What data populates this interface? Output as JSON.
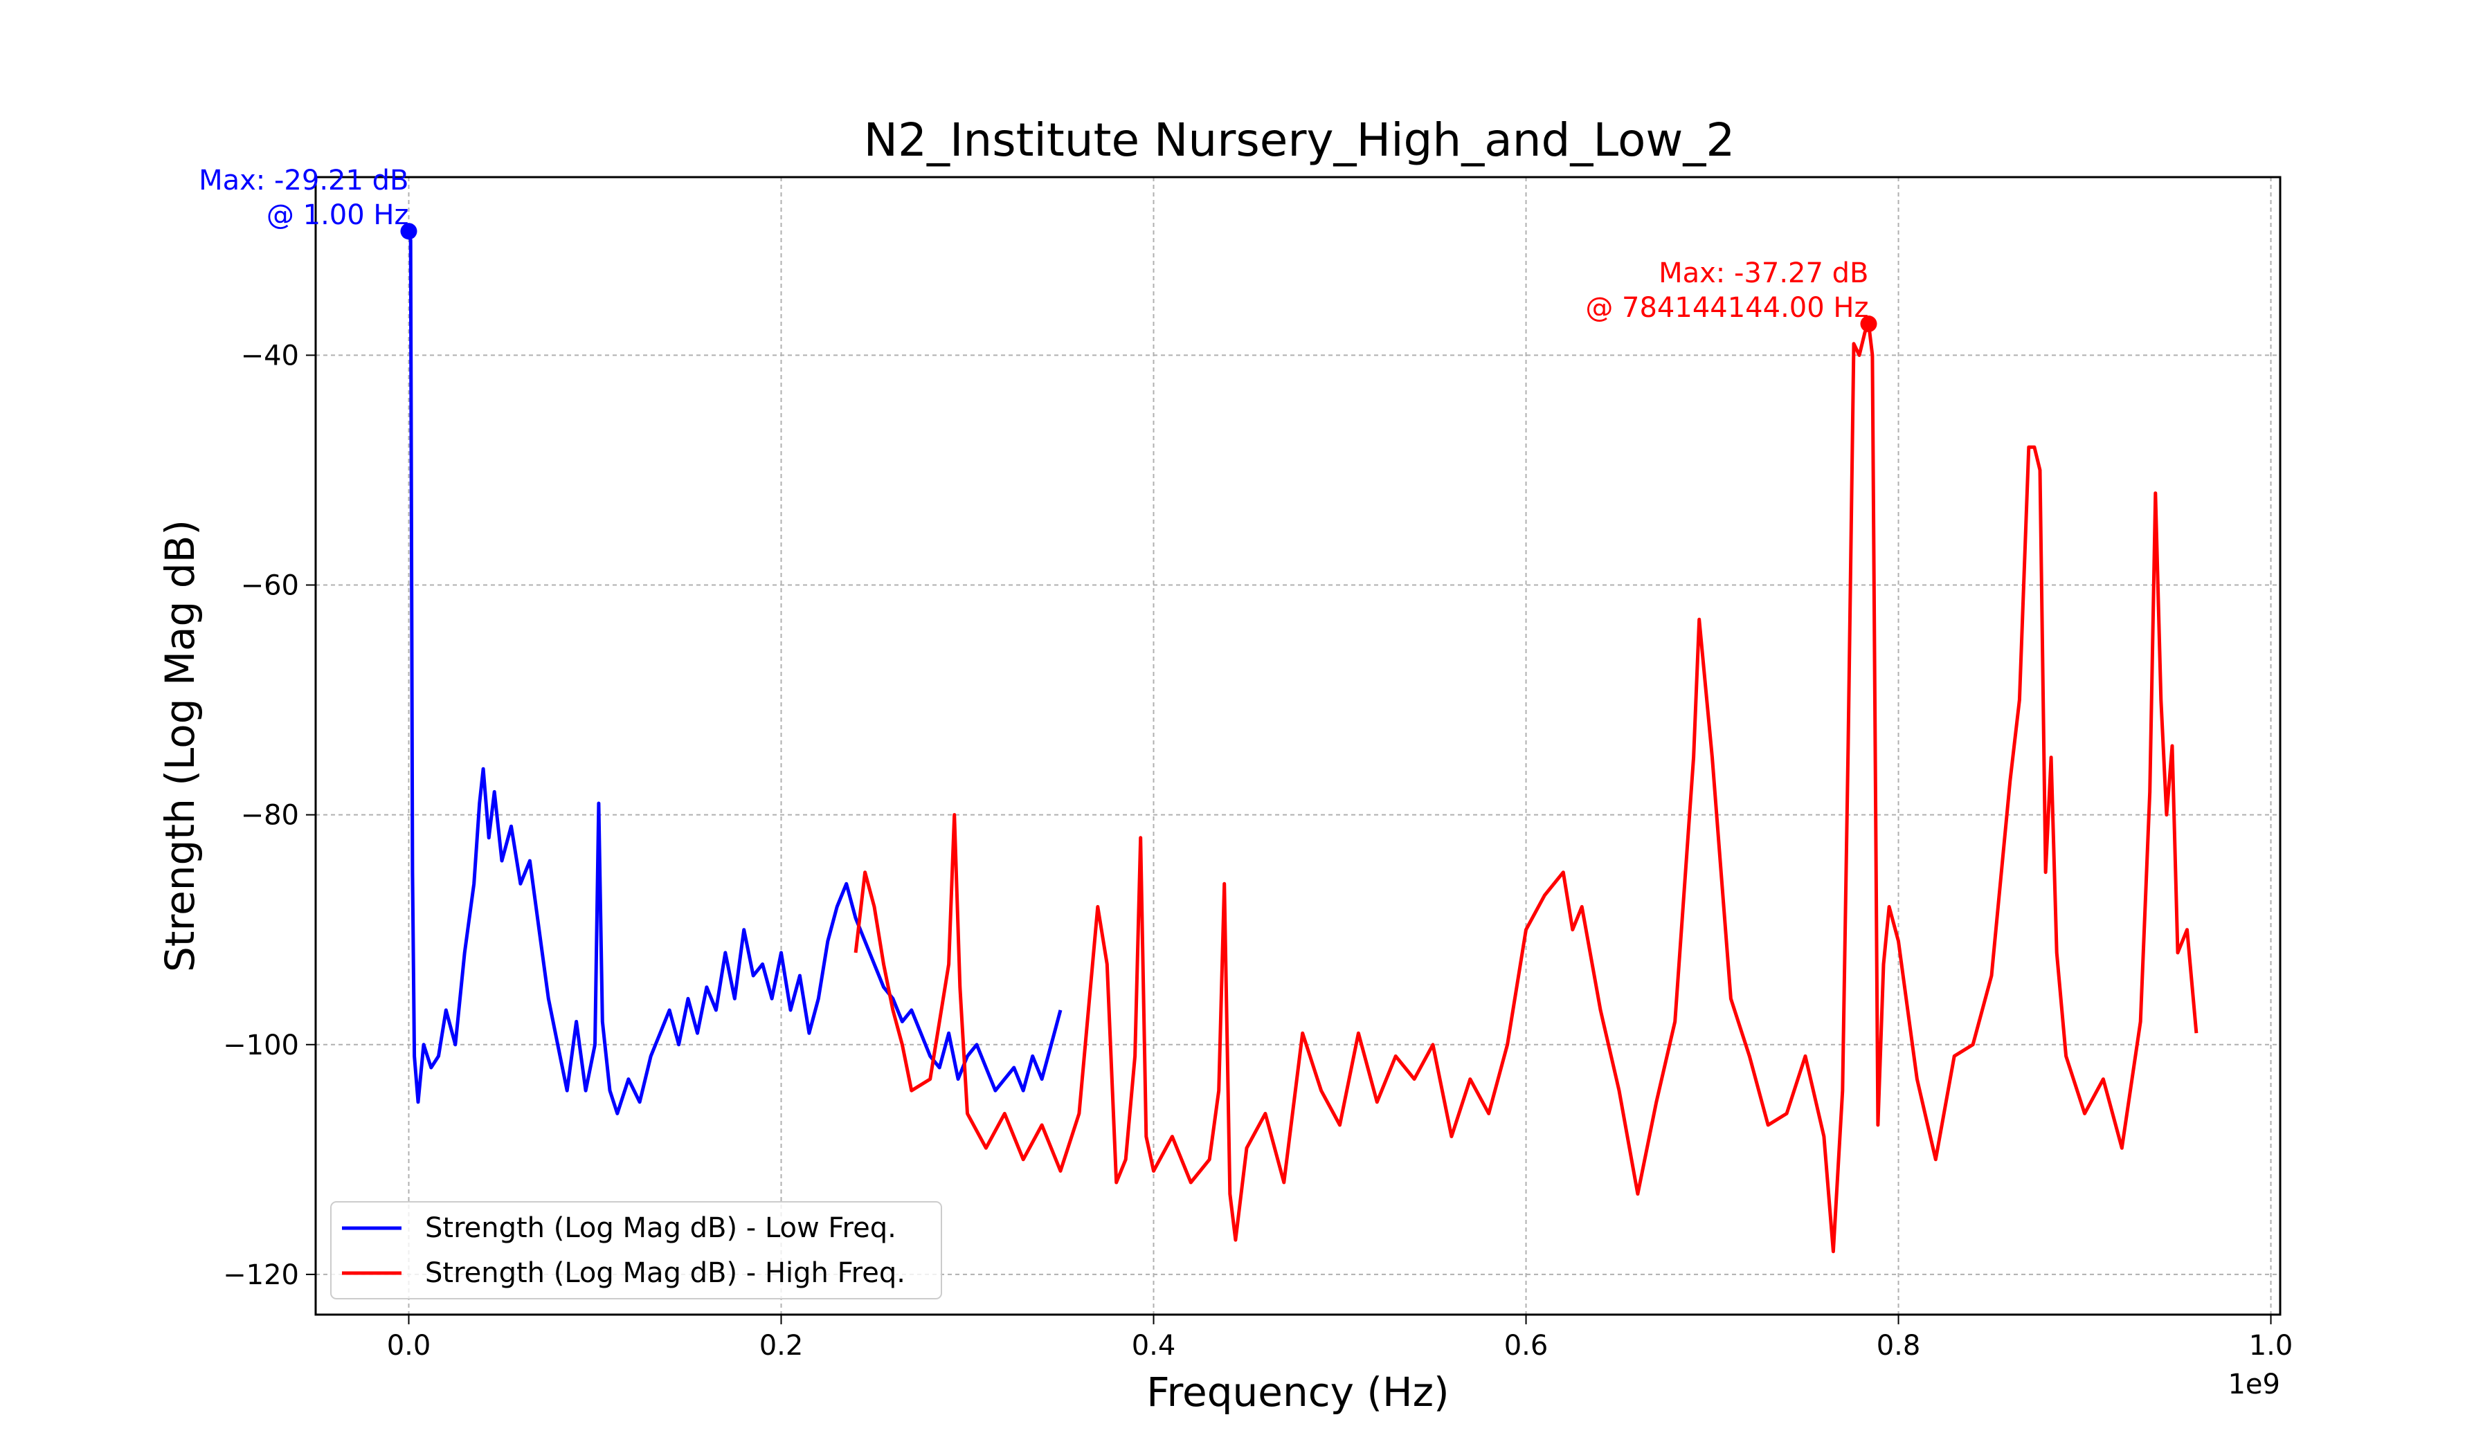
{
  "chart_data": {
    "type": "line",
    "title": "N2_Institute Nursery_High_and_Low_2",
    "xlabel": "Frequency (Hz)",
    "ylabel": "Strength (Log Mag dB)",
    "x_scale_label": "1e9",
    "xlim": [
      -0.05,
      1.005
    ],
    "ylim": [
      -123.5,
      -24.5
    ],
    "x_tick_values": [
      0.0,
      0.2,
      0.4,
      0.6,
      0.8,
      1.0
    ],
    "x_tick_labels": [
      "0.0",
      "0.2",
      "0.4",
      "0.6",
      "0.8",
      "1.0"
    ],
    "y_tick_values": [
      -40,
      -60,
      -80,
      -100,
      -120
    ],
    "y_tick_labels": [
      "−40",
      "−60",
      "−80",
      "−100",
      "−120"
    ],
    "grid": true,
    "legend_position": "lower-left",
    "series": [
      {
        "name": "Strength (Log Mag dB) - Low Freq.",
        "color": "#0000ff",
        "x": [
          0.0,
          0.001,
          0.002,
          0.003,
          0.005,
          0.008,
          0.012,
          0.016,
          0.02,
          0.025,
          0.03,
          0.035,
          0.038,
          0.04,
          0.043,
          0.046,
          0.05,
          0.055,
          0.06,
          0.065,
          0.07,
          0.075,
          0.08,
          0.085,
          0.09,
          0.095,
          0.1,
          0.102,
          0.104,
          0.108,
          0.112,
          0.118,
          0.124,
          0.13,
          0.135,
          0.14,
          0.145,
          0.15,
          0.155,
          0.16,
          0.165,
          0.17,
          0.175,
          0.18,
          0.185,
          0.19,
          0.195,
          0.2,
          0.205,
          0.21,
          0.215,
          0.22,
          0.225,
          0.23,
          0.235,
          0.24,
          0.245,
          0.25,
          0.255,
          0.26,
          0.265,
          0.27,
          0.275,
          0.28,
          0.285,
          0.29,
          0.295,
          0.3,
          0.305,
          0.31,
          0.315,
          0.32,
          0.325,
          0.33,
          0.335,
          0.34,
          0.345,
          0.35
        ],
        "y": [
          -29.21,
          -30,
          -85,
          -101,
          -105,
          -100,
          -102,
          -101,
          -97,
          -100,
          -92,
          -86,
          -79,
          -76,
          -82,
          -78,
          -84,
          -81,
          -86,
          -84,
          -90,
          -96,
          -100,
          -104,
          -98,
          -104,
          -100,
          -79,
          -98,
          -104,
          -106,
          -103,
          -105,
          -101,
          -99,
          -97,
          -100,
          -96,
          -99,
          -95,
          -97,
          -92,
          -96,
          -90,
          -94,
          -93,
          -96,
          -92,
          -97,
          -94,
          -99,
          -96,
          -91,
          -88,
          -86,
          -89,
          -91,
          -93,
          -95,
          -96,
          -98,
          -97,
          -99,
          -101,
          -102,
          -99,
          -103,
          -101,
          -100,
          -102,
          -104,
          -103,
          -102,
          -104,
          -101,
          -103,
          -100,
          -97
        ]
      },
      {
        "name": "Strength (Log Mag dB) - High Freq.",
        "color": "#ff0000",
        "x": [
          0.24,
          0.245,
          0.25,
          0.255,
          0.26,
          0.265,
          0.27,
          0.28,
          0.285,
          0.29,
          0.293,
          0.296,
          0.3,
          0.31,
          0.32,
          0.33,
          0.34,
          0.35,
          0.36,
          0.37,
          0.375,
          0.38,
          0.385,
          0.39,
          0.393,
          0.396,
          0.4,
          0.41,
          0.42,
          0.43,
          0.435,
          0.438,
          0.441,
          0.444,
          0.45,
          0.46,
          0.47,
          0.48,
          0.49,
          0.5,
          0.51,
          0.52,
          0.53,
          0.54,
          0.55,
          0.56,
          0.57,
          0.58,
          0.59,
          0.6,
          0.61,
          0.62,
          0.625,
          0.63,
          0.64,
          0.65,
          0.66,
          0.67,
          0.68,
          0.69,
          0.693,
          0.7,
          0.71,
          0.72,
          0.73,
          0.74,
          0.75,
          0.76,
          0.765,
          0.77,
          0.773,
          0.776,
          0.779,
          0.782,
          0.784,
          0.786,
          0.789,
          0.792,
          0.795,
          0.8,
          0.81,
          0.82,
          0.83,
          0.84,
          0.85,
          0.86,
          0.865,
          0.87,
          0.873,
          0.876,
          0.879,
          0.882,
          0.885,
          0.89,
          0.9,
          0.91,
          0.92,
          0.93,
          0.935,
          0.938,
          0.941,
          0.944,
          0.947,
          0.95,
          0.955,
          0.96
        ],
        "y": [
          -92,
          -85,
          -88,
          -93,
          -97,
          -100,
          -104,
          -103,
          -98,
          -93,
          -80,
          -95,
          -106,
          -109,
          -106,
          -110,
          -107,
          -111,
          -106,
          -88,
          -93,
          -112,
          -110,
          -101,
          -82,
          -108,
          -111,
          -108,
          -112,
          -110,
          -104,
          -86,
          -113,
          -117,
          -109,
          -106,
          -112,
          -99,
          -104,
          -107,
          -99,
          -105,
          -101,
          -103,
          -100,
          -108,
          -103,
          -106,
          -100,
          -90,
          -87,
          -85,
          -90,
          -88,
          -97,
          -104,
          -113,
          -105,
          -98,
          -75,
          -63,
          -75,
          -96,
          -101,
          -107,
          -106,
          -101,
          -108,
          -118,
          -104,
          -74,
          -39,
          -40,
          -38,
          -37.27,
          -40,
          -107,
          -93,
          -88,
          -91,
          -103,
          -110,
          -101,
          -100,
          -94,
          -77,
          -70,
          -48,
          -48,
          -50,
          -85,
          -75,
          -92,
          -101,
          -106,
          -103,
          -109,
          -98,
          -78,
          -52,
          -70,
          -80,
          -74,
          -92,
          -90,
          -99
        ]
      }
    ],
    "annotations": [
      {
        "series": 0,
        "x": 0.0,
        "y": -29.21,
        "line1": "Max: -29.21 dB",
        "line2": "@ 1.00 Hz",
        "color": "#0000ff"
      },
      {
        "series": 1,
        "x": 0.784,
        "y": -37.27,
        "line1": "Max: -37.27 dB",
        "line2": "@ 784144144.00 Hz",
        "color": "#ff0000"
      }
    ]
  }
}
